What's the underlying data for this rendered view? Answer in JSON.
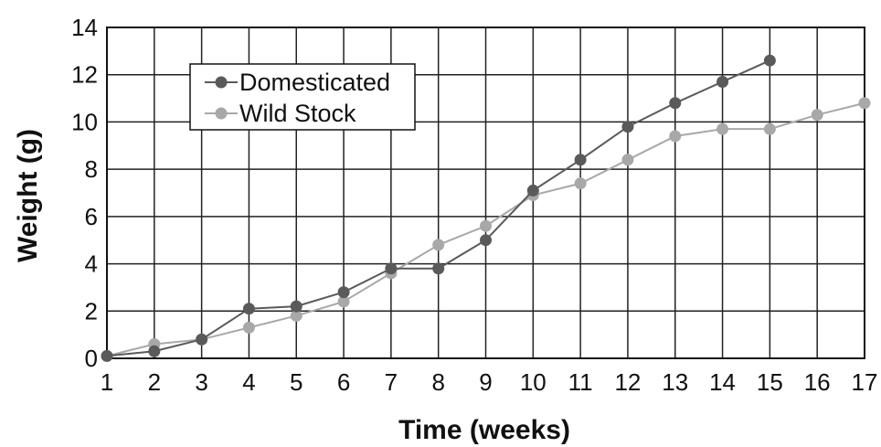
{
  "chart_data": {
    "type": "line",
    "title": "",
    "xlabel": "Time (weeks)",
    "ylabel": "Weight (g)",
    "xlim": [
      1,
      17
    ],
    "ylim": [
      0,
      14
    ],
    "x_ticks": [
      1,
      2,
      3,
      4,
      5,
      6,
      7,
      8,
      9,
      10,
      11,
      12,
      13,
      14,
      15,
      16,
      17
    ],
    "y_ticks": [
      0,
      2,
      4,
      6,
      8,
      10,
      12,
      14
    ],
    "grid": true,
    "legend_position": "top-left",
    "series": [
      {
        "name": "Domesticated",
        "color": "#5a5a5a",
        "x": [
          1,
          2,
          3,
          4,
          5,
          6,
          7,
          8,
          9,
          10,
          11,
          12,
          13,
          14,
          15
        ],
        "values": [
          0.1,
          0.3,
          0.8,
          2.1,
          2.2,
          2.8,
          3.8,
          3.8,
          5.0,
          7.1,
          8.4,
          9.8,
          10.8,
          11.7,
          12.6
        ]
      },
      {
        "name": "Wild Stock",
        "color": "#a8a8a8",
        "x": [
          1,
          2,
          3,
          4,
          5,
          6,
          7,
          8,
          9,
          10,
          11,
          12,
          13,
          14,
          15,
          16,
          17
        ],
        "values": [
          0.1,
          0.6,
          0.8,
          1.3,
          1.8,
          2.4,
          3.6,
          4.8,
          5.6,
          6.9,
          7.4,
          8.4,
          9.4,
          9.7,
          9.7,
          10.3,
          10.8
        ]
      }
    ]
  }
}
